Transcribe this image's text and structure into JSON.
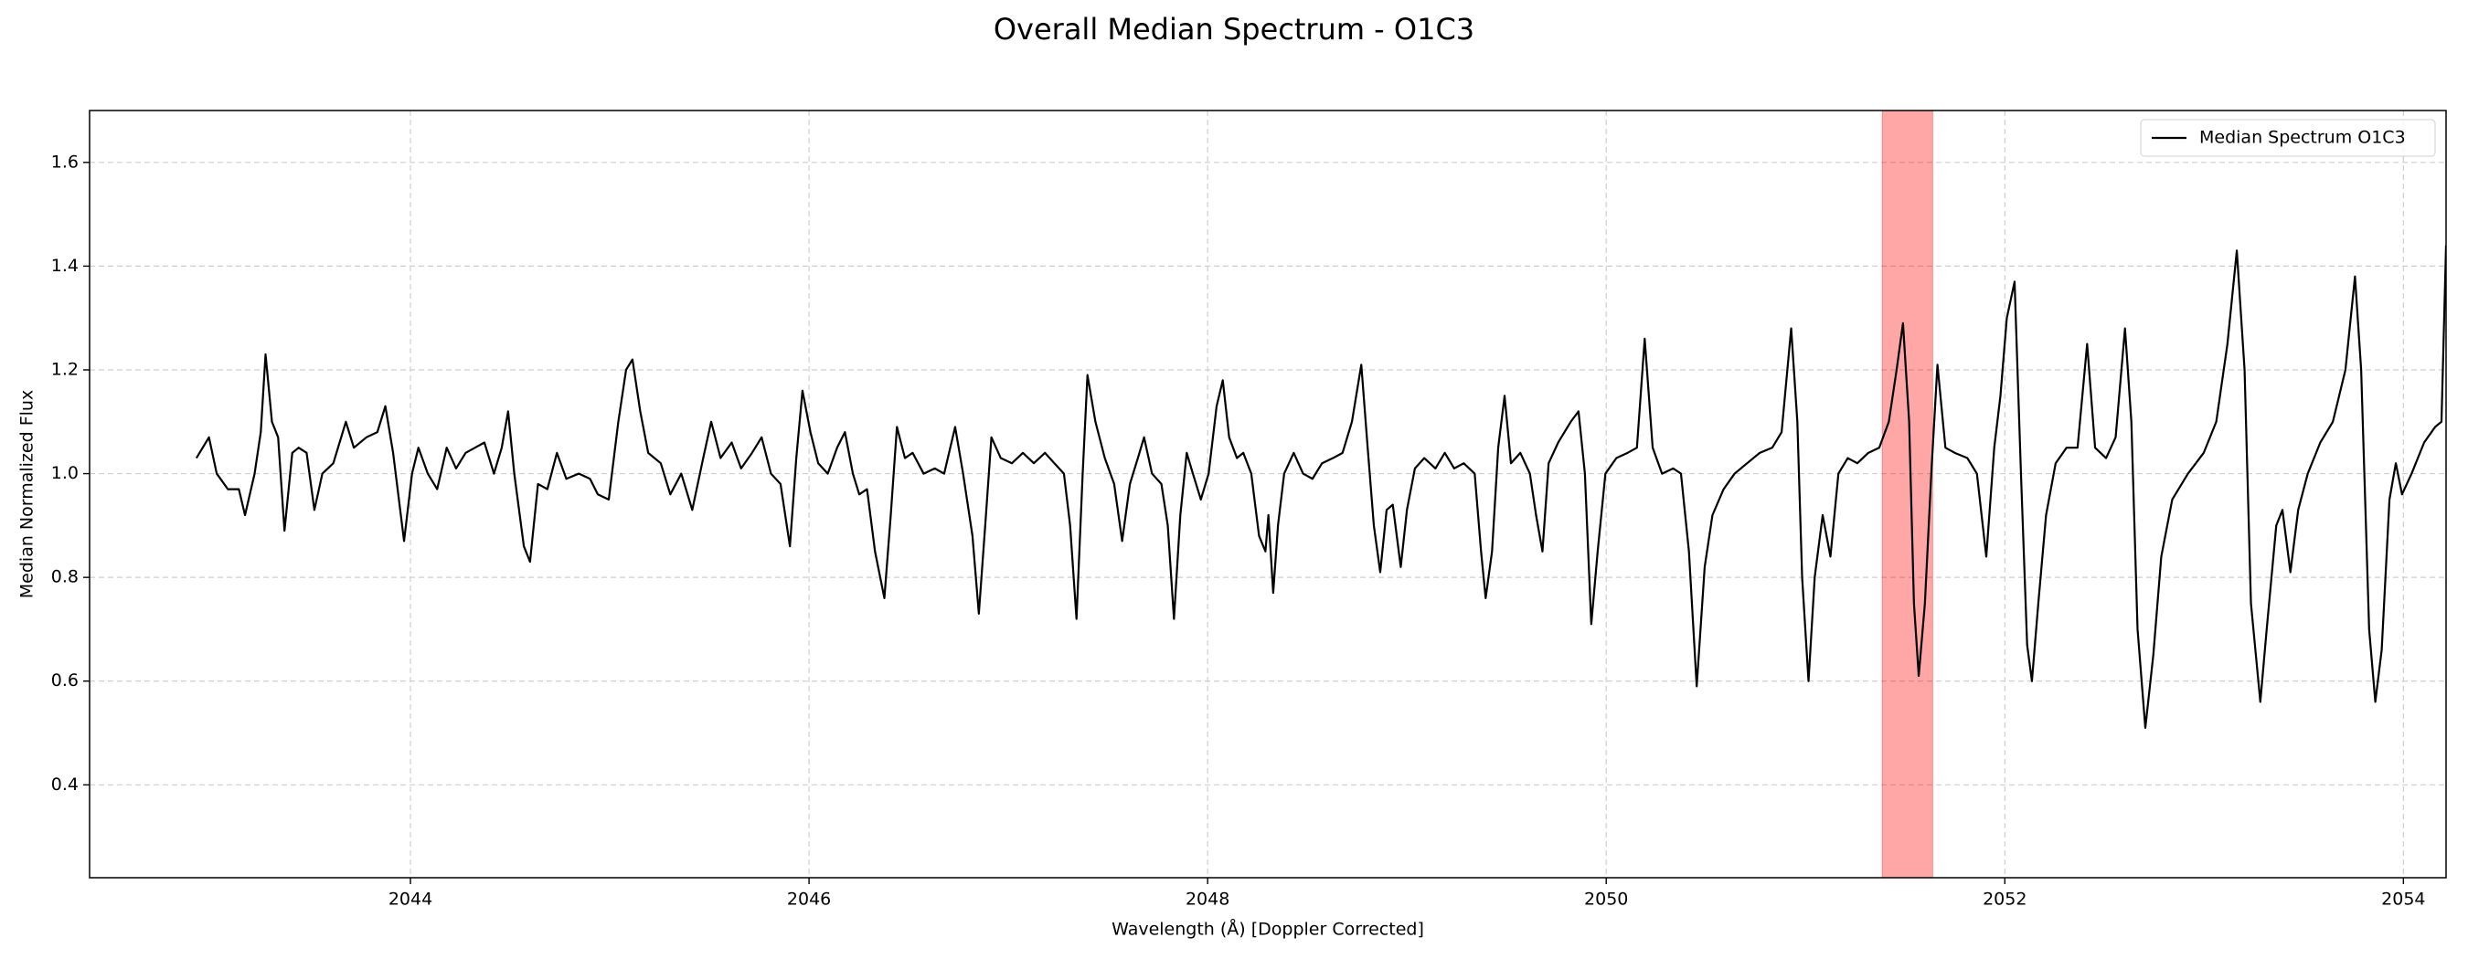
{
  "chart_data": {
    "type": "line",
    "title": "Overall Median Spectrum - O1C3",
    "xlabel": "Wavelength (Å) [Doppler Corrected]",
    "ylabel": "Median Normalized Flux",
    "x": [
      2042.926,
      2042.989,
      2043.028,
      2043.084,
      2043.139,
      2043.17,
      2043.218,
      2043.249,
      2043.273,
      2043.305,
      2043.336,
      2043.368,
      2043.407,
      2043.439,
      2043.479,
      2043.518,
      2043.558,
      2043.613,
      2043.676,
      2043.716,
      2043.779,
      2043.834,
      2043.874,
      2043.913,
      2043.968,
      2044.008,
      2044.04,
      2044.087,
      2044.134,
      2044.182,
      2044.229,
      2044.277,
      2044.324,
      2044.371,
      2044.419,
      2044.458,
      2044.49,
      2044.521,
      2044.569,
      2044.6,
      2044.64,
      2044.687,
      2044.735,
      2044.782,
      2044.845,
      2044.901,
      2044.94,
      2044.995,
      2045.043,
      2045.082,
      2045.114,
      2045.153,
      2045.193,
      2045.256,
      2045.304,
      2045.359,
      2045.414,
      2045.469,
      2045.509,
      2045.556,
      2045.612,
      2045.659,
      2045.714,
      2045.762,
      2045.809,
      2045.857,
      2045.904,
      2045.936,
      2045.967,
      2046.007,
      2046.046,
      2046.094,
      2046.141,
      2046.18,
      2046.22,
      2046.252,
      2046.291,
      2046.331,
      2046.378,
      2046.41,
      2046.441,
      2046.481,
      2046.52,
      2046.575,
      2046.631,
      2046.678,
      2046.733,
      2046.773,
      2046.82,
      2046.852,
      2046.884,
      2046.915,
      2046.962,
      2047.018,
      2047.073,
      2047.128,
      2047.184,
      2047.231,
      2047.279,
      2047.31,
      2047.342,
      2047.373,
      2047.397,
      2047.437,
      2047.484,
      2047.531,
      2047.571,
      2047.61,
      2047.65,
      2047.681,
      2047.721,
      2047.768,
      2047.8,
      2047.831,
      2047.863,
      2047.895,
      2047.926,
      2047.966,
      2048.005,
      2048.045,
      2048.076,
      2048.108,
      2048.147,
      2048.179,
      2048.219,
      2048.258,
      2048.29,
      2048.305,
      2048.329,
      2048.353,
      2048.384,
      2048.432,
      2048.479,
      2048.526,
      2048.574,
      2048.629,
      2048.677,
      2048.724,
      2048.771,
      2048.803,
      2048.834,
      2048.866,
      2048.898,
      2048.929,
      2048.969,
      2049.0,
      2049.04,
      2049.087,
      2049.143,
      2049.19,
      2049.237,
      2049.285,
      2049.34,
      2049.372,
      2049.395,
      2049.427,
      2049.458,
      2049.49,
      2049.522,
      2049.569,
      2049.617,
      2049.648,
      2049.68,
      2049.711,
      2049.759,
      2049.822,
      2049.861,
      2049.893,
      2049.925,
      2049.957,
      2049.996,
      2050.051,
      2050.107,
      2050.154,
      2050.193,
      2050.233,
      2050.28,
      2050.336,
      2050.375,
      2050.415,
      2050.454,
      2050.494,
      2050.533,
      2050.589,
      2050.644,
      2050.707,
      2050.77,
      2050.833,
      2050.88,
      2050.928,
      2050.959,
      2050.983,
      2051.015,
      2051.046,
      2051.086,
      2051.125,
      2051.165,
      2051.212,
      2051.26,
      2051.315,
      2051.37,
      2051.418,
      2051.457,
      2051.489,
      2051.52,
      2051.544,
      2051.568,
      2051.599,
      2051.631,
      2051.662,
      2051.702,
      2051.749,
      2051.812,
      2051.86,
      2051.907,
      2051.947,
      2051.978,
      2052.01,
      2052.049,
      2052.081,
      2052.112,
      2052.136,
      2052.168,
      2052.207,
      2052.255,
      2052.31,
      2052.365,
      2052.413,
      2052.453,
      2052.508,
      2052.556,
      2052.603,
      2052.635,
      2052.666,
      2052.705,
      2052.745,
      2052.785,
      2052.84,
      2052.919,
      2052.998,
      2053.061,
      2053.117,
      2053.164,
      2053.203,
      2053.235,
      2053.282,
      2053.314,
      2053.362,
      2053.393,
      2053.433,
      2053.472,
      2053.52,
      2053.583,
      2053.646,
      2053.709,
      2053.757,
      2053.788,
      2053.828,
      2053.859,
      2053.891,
      2053.93,
      2053.962,
      2053.993,
      2054.041,
      2054.104,
      2054.159,
      2054.191,
      2054.214
    ],
    "series": [
      {
        "name": "Median Spectrum O1C3",
        "color": "#000000",
        "values": [
          1.03,
          1.07,
          1.0,
          0.97,
          0.97,
          0.92,
          1.0,
          1.08,
          1.23,
          1.1,
          1.07,
          0.89,
          1.04,
          1.05,
          1.04,
          0.93,
          1.0,
          1.02,
          1.1,
          1.05,
          1.07,
          1.08,
          1.13,
          1.04,
          0.87,
          1.0,
          1.05,
          1.0,
          0.97,
          1.05,
          1.01,
          1.04,
          1.05,
          1.06,
          1.0,
          1.05,
          1.12,
          1.0,
          0.86,
          0.83,
          0.98,
          0.97,
          1.04,
          0.99,
          1.0,
          0.99,
          0.96,
          0.95,
          1.1,
          1.2,
          1.22,
          1.12,
          1.04,
          1.02,
          0.96,
          1.0,
          0.93,
          1.03,
          1.1,
          1.03,
          1.06,
          1.01,
          1.04,
          1.07,
          1.0,
          0.98,
          0.86,
          1.03,
          1.16,
          1.08,
          1.02,
          1.0,
          1.05,
          1.08,
          1.0,
          0.96,
          0.97,
          0.85,
          0.76,
          0.92,
          1.09,
          1.03,
          1.04,
          1.0,
          1.01,
          1.0,
          1.09,
          1.0,
          0.88,
          0.73,
          0.9,
          1.07,
          1.03,
          1.02,
          1.04,
          1.02,
          1.04,
          1.02,
          1.0,
          0.9,
          0.72,
          1.0,
          1.19,
          1.1,
          1.03,
          0.98,
          0.87,
          0.98,
          1.03,
          1.07,
          1.0,
          0.98,
          0.9,
          0.72,
          0.92,
          1.04,
          1.0,
          0.95,
          1.0,
          1.13,
          1.18,
          1.07,
          1.03,
          1.04,
          1.0,
          0.88,
          0.85,
          0.92,
          0.77,
          0.9,
          1.0,
          1.04,
          1.0,
          0.99,
          1.02,
          1.03,
          1.04,
          1.1,
          1.21,
          1.05,
          0.9,
          0.81,
          0.93,
          0.94,
          0.82,
          0.93,
          1.01,
          1.03,
          1.01,
          1.04,
          1.01,
          1.02,
          1.0,
          0.85,
          0.76,
          0.85,
          1.05,
          1.15,
          1.02,
          1.04,
          1.0,
          0.92,
          0.85,
          1.02,
          1.06,
          1.1,
          1.12,
          1.0,
          0.71,
          0.85,
          1.0,
          1.03,
          1.04,
          1.05,
          1.26,
          1.05,
          1.0,
          1.01,
          1.0,
          0.85,
          0.59,
          0.82,
          0.92,
          0.97,
          1.0,
          1.02,
          1.04,
          1.05,
          1.08,
          1.28,
          1.1,
          0.8,
          0.6,
          0.8,
          0.92,
          0.84,
          1.0,
          1.03,
          1.02,
          1.04,
          1.05,
          1.1,
          1.2,
          1.29,
          1.1,
          0.75,
          0.61,
          0.75,
          1.0,
          1.21,
          1.05,
          1.04,
          1.03,
          1.0,
          0.84,
          1.05,
          1.15,
          1.3,
          1.37,
          1.0,
          0.67,
          0.6,
          0.75,
          0.92,
          1.02,
          1.05,
          1.05,
          1.25,
          1.05,
          1.03,
          1.07,
          1.28,
          1.1,
          0.7,
          0.51,
          0.65,
          0.84,
          0.95,
          1.0,
          1.04,
          1.1,
          1.25,
          1.43,
          1.2,
          0.75,
          0.56,
          0.7,
          0.9,
          0.93,
          0.81,
          0.93,
          1.0,
          1.06,
          1.1,
          1.2,
          1.38,
          1.2,
          0.7,
          0.56,
          0.66,
          0.95,
          1.02,
          0.96,
          1.0,
          1.06,
          1.09,
          1.1,
          1.44
        ]
      }
    ],
    "highlight": {
      "xmin": 2051.385,
      "xmax": 2051.638,
      "color": "#ff0000",
      "alpha": 0.35
    },
    "xlim": [
      2042.39,
      2054.214
    ],
    "ylim": [
      0.221,
      1.7
    ],
    "xticks": [
      2044,
      2046,
      2048,
      2050,
      2052,
      2054
    ],
    "yticks": [
      0.4,
      0.6,
      0.8,
      {
        "value": 1,
        "label": "1.0"
      },
      1.2,
      1.4,
      1.6
    ],
    "grid": true,
    "legend": "upper right"
  }
}
